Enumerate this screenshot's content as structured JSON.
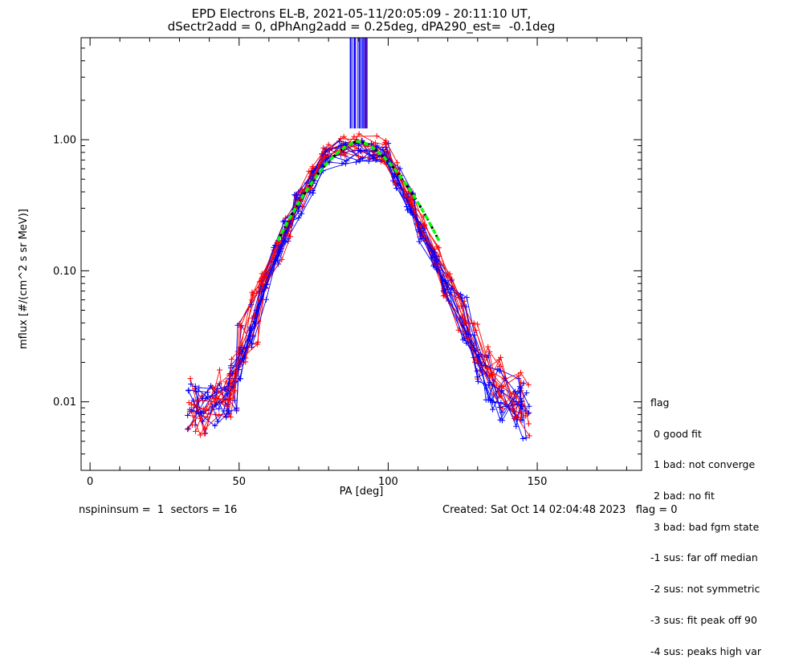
{
  "header": {
    "title_line1": "EPD Electrons EL-B, 2021-05-11/20:05:09 - 20:11:10 UT,",
    "title_line2": "dSectr2add = 0, dPhAng2add = 0.25deg, dPA290_est=  -0.1deg"
  },
  "footer": {
    "left": "nspininsum =  1  sectors = 16",
    "right": "Created: Sat Oct 14 02:04:48 2023   flag = 0"
  },
  "legend": {
    "title": "flag",
    "items": [
      " 0 good fit",
      " 1 bad: not converge",
      " 2 bad: no fit",
      " 3 bad: bad fgm state",
      "-1 sus: far off median",
      "-2 sus: not symmetric",
      "-3 sus: fit peak off 90",
      "-4 sus: peaks high var"
    ]
  },
  "colors": {
    "axis": "#000000",
    "series_red": "#ff0000",
    "series_blue": "#0000ff",
    "fit_green": "#00ff00",
    "fit_black": "#000000",
    "spike_purple": "#8b1a8b"
  },
  "chart_data": {
    "type": "line",
    "xlabel": "PA [deg]",
    "ylabel": "mflux [#/(cm^2 s sr MeV)]",
    "xlim": [
      -3,
      185
    ],
    "ylim": [
      0.003,
      6
    ],
    "yscale": "log",
    "xticks": [
      0,
      50,
      100,
      150
    ],
    "xtick_labels": [
      "0",
      "50",
      "100",
      "150"
    ],
    "yticks": [
      0.01,
      0.1,
      1.0
    ],
    "ytick_labels": [
      "0.01",
      "0.10",
      "1.00"
    ],
    "grid": false,
    "legend_position": "right",
    "series": [
      {
        "color": "red",
        "x": [
          34,
          38,
          42,
          46,
          48,
          51,
          55,
          58,
          63,
          66,
          70,
          74,
          79,
          85,
          90,
          95,
          99,
          103,
          107,
          111,
          116,
          120,
          125,
          130,
          134,
          138,
          143,
          146
        ],
        "y": [
          0.0095,
          0.0088,
          0.0105,
          0.0125,
          0.0145,
          0.027,
          0.045,
          0.08,
          0.14,
          0.22,
          0.34,
          0.52,
          0.75,
          0.86,
          0.9,
          0.88,
          0.82,
          0.56,
          0.35,
          0.22,
          0.13,
          0.078,
          0.045,
          0.025,
          0.016,
          0.013,
          0.011,
          0.009
        ]
      },
      {
        "color": "blue",
        "x": [
          34,
          38,
          42,
          46,
          48,
          51,
          55,
          58,
          63,
          66,
          70,
          74,
          79,
          85,
          90,
          95,
          99,
          103,
          107,
          111,
          116,
          120,
          125,
          130,
          134,
          138,
          143,
          146
        ],
        "y": [
          0.0085,
          0.0082,
          0.0095,
          0.0115,
          0.013,
          0.024,
          0.041,
          0.072,
          0.13,
          0.2,
          0.31,
          0.48,
          0.7,
          0.8,
          0.83,
          0.82,
          0.78,
          0.52,
          0.32,
          0.2,
          0.12,
          0.072,
          0.04,
          0.022,
          0.014,
          0.012,
          0.01,
          0.0085
        ]
      }
    ],
    "fit": {
      "peak": 0.97,
      "center": 90,
      "left_edge": 63,
      "right_edge": 117,
      "edge_value": 0.17
    }
  }
}
